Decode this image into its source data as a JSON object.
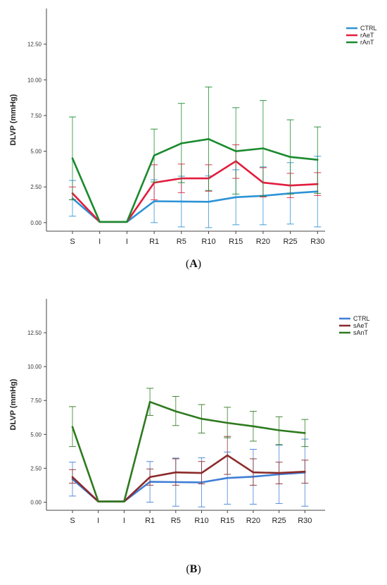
{
  "chart_data": [
    {
      "type": "line",
      "panel_label": "A",
      "ylabel": "DLVP (mmHg)",
      "categories": [
        "S",
        "I",
        "I",
        "R1",
        "R5",
        "R10",
        "R15",
        "R20",
        "R25",
        "R30"
      ],
      "ylim": [
        -0.6,
        15.0
      ],
      "yticks": [
        "0.00",
        "2.50",
        "5.00",
        "7.50",
        "10.00",
        "12.50"
      ],
      "grid": false,
      "legend_position": "top-right",
      "error_bars": true,
      "series": [
        {
          "name": "CTRL",
          "color": "#2d93d6",
          "values": [
            1.7,
            0.05,
            0.05,
            1.5,
            1.48,
            1.46,
            1.78,
            1.88,
            2.05,
            2.18
          ],
          "err_low": [
            0.45,
            0.05,
            0.05,
            0.0,
            -0.3,
            -0.35,
            -0.15,
            -0.15,
            -0.1,
            -0.3
          ],
          "err_high": [
            2.95,
            0.05,
            0.05,
            3.0,
            3.25,
            3.27,
            3.7,
            3.9,
            4.2,
            4.65
          ]
        },
        {
          "name": "rAeT",
          "color": "#e21d3f",
          "values": [
            2.05,
            0.05,
            0.05,
            2.8,
            3.1,
            3.1,
            4.3,
            2.8,
            2.6,
            2.7
          ],
          "err_low": [
            1.6,
            0.05,
            0.05,
            1.6,
            2.1,
            2.2,
            3.1,
            1.8,
            1.75,
            1.9
          ],
          "err_high": [
            2.5,
            0.05,
            0.05,
            4.05,
            4.1,
            4.05,
            5.45,
            3.85,
            3.45,
            3.5
          ]
        },
        {
          "name": "rAnT",
          "color": "#1a8a2e",
          "values": [
            4.5,
            0.05,
            0.05,
            4.7,
            5.55,
            5.85,
            5.0,
            5.2,
            4.6,
            4.4
          ],
          "err_low": [
            1.6,
            0.05,
            0.05,
            2.85,
            2.8,
            2.25,
            2.0,
            1.85,
            2.0,
            2.05
          ],
          "err_high": [
            7.4,
            0.05,
            0.05,
            6.55,
            8.35,
            9.5,
            8.05,
            8.55,
            7.2,
            6.7
          ]
        }
      ]
    },
    {
      "type": "line",
      "panel_label": "B",
      "ylabel": "DLVP (mmHg)",
      "categories": [
        "S",
        "I",
        "I",
        "R1",
        "R5",
        "R10",
        "R15",
        "R20",
        "R25",
        "R30"
      ],
      "ylim": [
        -0.6,
        15.0
      ],
      "yticks": [
        "0.00",
        "2.50",
        "5.00",
        "7.50",
        "10.00",
        "12.50"
      ],
      "grid": false,
      "legend_position": "top-right",
      "error_bars": true,
      "series": [
        {
          "name": "CTRL",
          "color": "#3f7fd6",
          "values": [
            1.7,
            0.05,
            0.05,
            1.5,
            1.48,
            1.46,
            1.78,
            1.88,
            2.05,
            2.18
          ],
          "err_low": [
            0.45,
            0.05,
            0.05,
            0.0,
            -0.3,
            -0.35,
            -0.15,
            -0.15,
            -0.1,
            -0.3
          ],
          "err_high": [
            2.95,
            0.05,
            0.05,
            3.0,
            3.25,
            3.27,
            3.7,
            3.9,
            4.2,
            4.65
          ]
        },
        {
          "name": "sAeT",
          "color": "#8b2a2a",
          "values": [
            1.85,
            0.05,
            0.05,
            1.85,
            2.2,
            2.15,
            3.45,
            2.2,
            2.15,
            2.25
          ],
          "err_low": [
            1.4,
            0.05,
            0.05,
            1.25,
            1.25,
            1.35,
            2.05,
            1.25,
            1.35,
            1.4
          ],
          "err_high": [
            2.4,
            0.05,
            0.05,
            2.45,
            3.2,
            3.0,
            4.85,
            3.2,
            2.95,
            3.1
          ]
        },
        {
          "name": "sAnT",
          "color": "#2e7a1f",
          "values": [
            5.55,
            0.05,
            0.05,
            7.4,
            6.7,
            6.15,
            5.85,
            5.6,
            5.3,
            5.1
          ],
          "err_low": [
            4.1,
            0.05,
            0.05,
            6.4,
            5.65,
            5.1,
            4.75,
            4.5,
            4.25,
            4.1
          ],
          "err_high": [
            7.05,
            0.05,
            0.05,
            8.4,
            7.8,
            7.2,
            7.0,
            6.7,
            6.3,
            6.1
          ]
        }
      ]
    }
  ]
}
